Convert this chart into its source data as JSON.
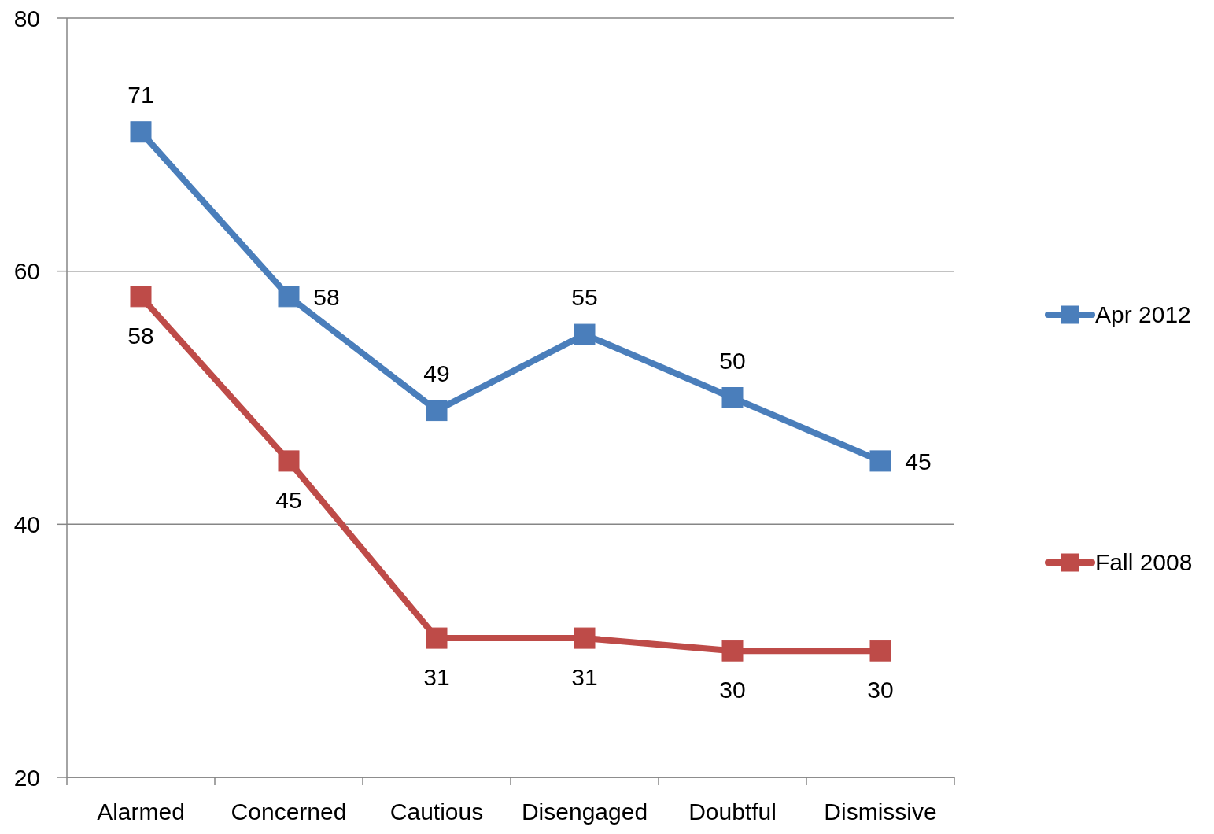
{
  "chart_data": {
    "type": "line",
    "categories": [
      "Alarmed",
      "Concerned",
      "Cautious",
      "Disengaged",
      "Doubtful",
      "Dismissive"
    ],
    "series": [
      {
        "name": "Apr 2012",
        "color": "#4a7ebb",
        "values": [
          71,
          58,
          49,
          55,
          50,
          45
        ]
      },
      {
        "name": "Fall 2008",
        "color": "#be4b48",
        "values": [
          58,
          45,
          31,
          31,
          30,
          30
        ]
      }
    ],
    "ylim": [
      20,
      80
    ],
    "yticks": [
      20,
      40,
      60,
      80
    ],
    "grid": "y",
    "legend": "right",
    "marker": "square",
    "line_style": "solid",
    "data_labels": true
  }
}
